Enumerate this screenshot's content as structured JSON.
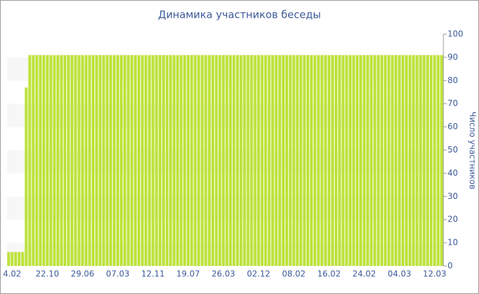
{
  "chart_data": {
    "type": "bar",
    "title": "Динамика участников беседы",
    "y_label": "Число участников",
    "categories": [
      null,
      "4.02",
      null,
      null,
      null,
      null,
      null,
      null,
      null,
      null,
      null,
      "22.10",
      null,
      null,
      null,
      null,
      null,
      null,
      null,
      null,
      null,
      "29.06",
      null,
      null,
      null,
      null,
      null,
      null,
      null,
      null,
      null,
      "07.03",
      null,
      null,
      null,
      null,
      null,
      null,
      null,
      null,
      null,
      "12.11",
      null,
      null,
      null,
      null,
      null,
      null,
      null,
      null,
      null,
      "19.07",
      null,
      null,
      null,
      null,
      null,
      null,
      null,
      null,
      null,
      "26.03",
      null,
      null,
      null,
      null,
      null,
      null,
      null,
      null,
      null,
      "02.12",
      null,
      null,
      null,
      null,
      null,
      null,
      null,
      null,
      null,
      "08.02",
      null,
      null,
      null,
      null,
      null,
      null,
      null,
      null,
      null,
      "16.02",
      null,
      null,
      null,
      null,
      null,
      null,
      null,
      null,
      null,
      "24.02",
      null,
      null,
      null,
      null,
      null,
      null,
      null,
      null,
      null,
      "04.03",
      null,
      null,
      null,
      null,
      null,
      null,
      null,
      null,
      null,
      "12.03",
      null,
      null
    ],
    "values": [
      6,
      6,
      6,
      6,
      6,
      77,
      91,
      91,
      91,
      91,
      91,
      91,
      91,
      91,
      91,
      91,
      91,
      91,
      91,
      91,
      91,
      91,
      91,
      91,
      91,
      91,
      91,
      91,
      91,
      91,
      91,
      91,
      91,
      91,
      91,
      91,
      91,
      91,
      91,
      91,
      91,
      91,
      91,
      91,
      91,
      91,
      91,
      91,
      91,
      91,
      91,
      91,
      91,
      91,
      91,
      91,
      91,
      91,
      91,
      91,
      91,
      91,
      91,
      91,
      91,
      91,
      91,
      91,
      91,
      91,
      91,
      91,
      91,
      91,
      91,
      91,
      91,
      91,
      91,
      91,
      91,
      91,
      91,
      91,
      91,
      91,
      91,
      91,
      91,
      91,
      91,
      91,
      91,
      91,
      91,
      91,
      91,
      91,
      91,
      91,
      91,
      91,
      91,
      91,
      91,
      91,
      91,
      91,
      91,
      91,
      91,
      91,
      91,
      91,
      91,
      91,
      91,
      91,
      91,
      91,
      91,
      91,
      91,
      91
    ],
    "color": "#bde33a",
    "ylim": [
      0,
      100
    ],
    "yticks": [
      0,
      10,
      20,
      30,
      40,
      50,
      60,
      70,
      80,
      90,
      100
    ],
    "grid": true
  }
}
